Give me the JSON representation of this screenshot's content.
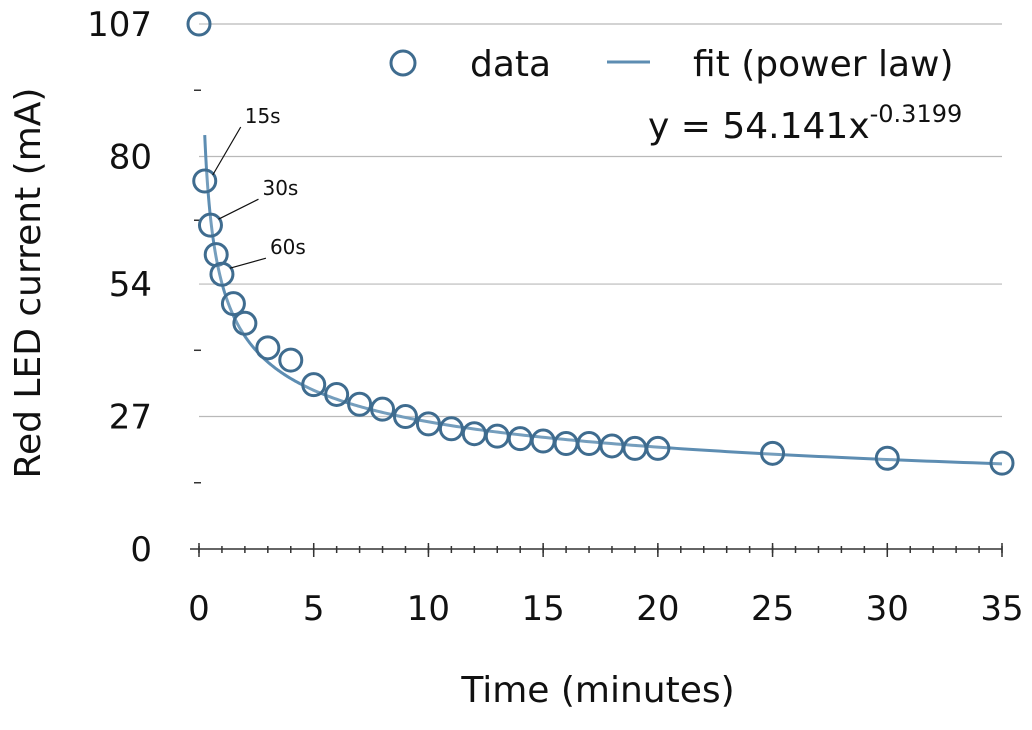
{
  "chart_data": {
    "type": "scatter",
    "xlabel": "Time (minutes)",
    "ylabel": "Red LED current (mA)",
    "xlim": [
      0,
      35
    ],
    "ylim": [
      0,
      107
    ],
    "x_ticks": [
      0,
      5,
      10,
      15,
      20,
      25,
      30,
      35
    ],
    "y_ticks": [
      0,
      27,
      54,
      80,
      107
    ],
    "grid": true,
    "legend_position": "top-right",
    "series": [
      {
        "name": "data",
        "marker": "open-circle",
        "points": [
          {
            "x": 0,
            "y": 107
          },
          {
            "x": 0.25,
            "y": 75
          },
          {
            "x": 0.5,
            "y": 66
          },
          {
            "x": 0.75,
            "y": 60
          },
          {
            "x": 1,
            "y": 56
          },
          {
            "x": 1.5,
            "y": 50
          },
          {
            "x": 2,
            "y": 46
          },
          {
            "x": 3,
            "y": 41
          },
          {
            "x": 4,
            "y": 38.5
          },
          {
            "x": 5,
            "y": 33.5
          },
          {
            "x": 6,
            "y": 31.5
          },
          {
            "x": 7,
            "y": 29.5
          },
          {
            "x": 8,
            "y": 28.5
          },
          {
            "x": 9,
            "y": 27
          },
          {
            "x": 10,
            "y": 25.5
          },
          {
            "x": 11,
            "y": 24.5
          },
          {
            "x": 12,
            "y": 23.5
          },
          {
            "x": 13,
            "y": 23
          },
          {
            "x": 14,
            "y": 22.5
          },
          {
            "x": 15,
            "y": 22
          },
          {
            "x": 16,
            "y": 21.5
          },
          {
            "x": 17,
            "y": 21.5
          },
          {
            "x": 18,
            "y": 21
          },
          {
            "x": 19,
            "y": 20.5
          },
          {
            "x": 20,
            "y": 20.5
          },
          {
            "x": 25,
            "y": 19.5
          },
          {
            "x": 30,
            "y": 18.5
          },
          {
            "x": 35,
            "y": 17.5
          }
        ]
      },
      {
        "name": "fit (power law)",
        "marker": "line",
        "coefficient": 54.141,
        "exponent": -0.3199,
        "x_range": [
          0.25,
          35
        ]
      }
    ],
    "equation": {
      "prefix": "y = 54.141x",
      "exponent": "-0.3199"
    },
    "annotations": [
      {
        "label": "15s",
        "x": 0.25,
        "y": 75
      },
      {
        "label": "30s",
        "x": 0.5,
        "y": 66
      },
      {
        "label": "60s",
        "x": 1,
        "y": 56
      }
    ],
    "colors": {
      "marker_stroke": "#3f6c8f",
      "fit_line": "#5d8db2",
      "grid": "#b9b9b9",
      "axis": "#333333"
    }
  }
}
